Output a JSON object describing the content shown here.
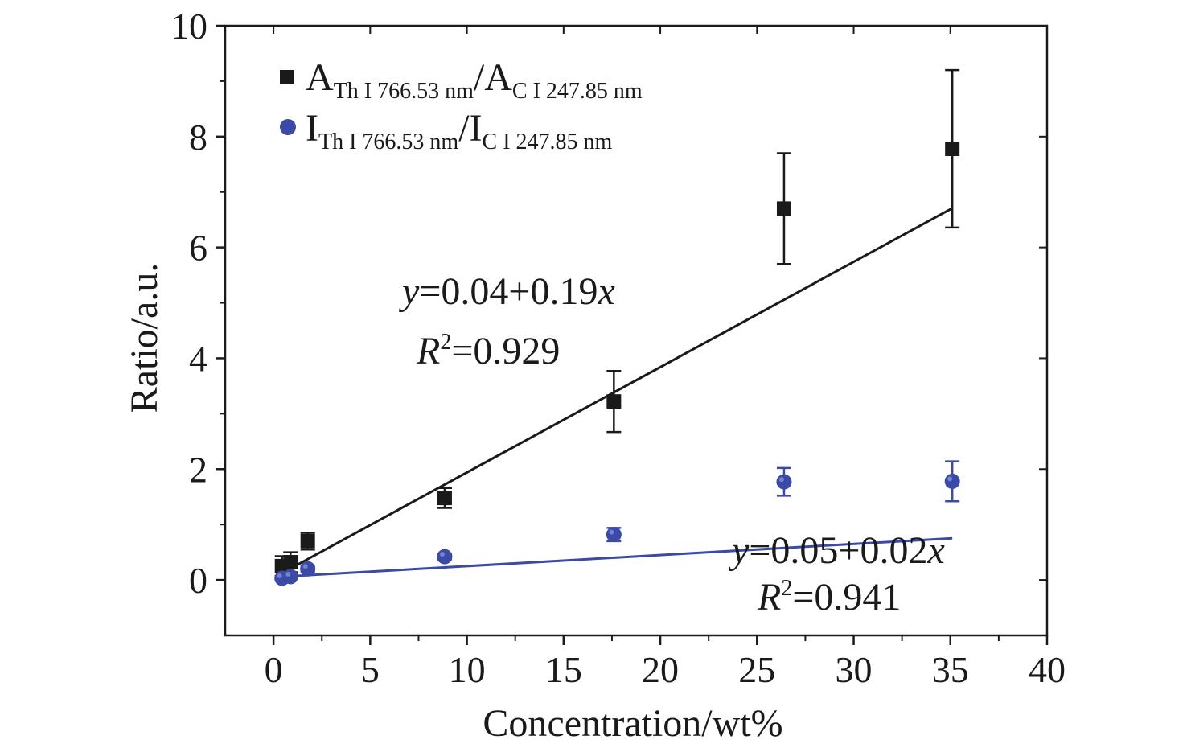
{
  "chart_data": {
    "type": "scatter",
    "xlabel": "Concentration/wt%",
    "ylabel": "Ratio/a.u.",
    "xlim": [
      -2.5,
      40
    ],
    "ylim": [
      -1,
      10
    ],
    "xticks": [
      "0",
      "5",
      "10",
      "15",
      "20",
      "25",
      "30",
      "35",
      "40"
    ],
    "yticks": [
      "0",
      "2",
      "4",
      "6",
      "8",
      "10"
    ],
    "grid": false,
    "legend_position": "top-left",
    "series": [
      {
        "legend": {
          "main1": "A",
          "sub1": "Th I 766.53 nm",
          "main2": "/A",
          "sub2": "C I 247.85 nm"
        },
        "marker": "square",
        "color": "#1a1a1a",
        "x": [
          0.44,
          0.88,
          1.77,
          8.85,
          17.6,
          26.4,
          35.1
        ],
        "y": [
          0.25,
          0.32,
          0.7,
          1.48,
          3.22,
          6.7,
          7.78
        ],
        "yerr": [
          0.18,
          0.18,
          0.15,
          0.18,
          0.55,
          1.0,
          1.42
        ],
        "fit": {
          "intercept": 0.04,
          "slope": 0.19,
          "x_range": [
            0.44,
            35.1
          ]
        },
        "equation": {
          "y": "y",
          "rhs": "=0.04+0.19",
          "x": "x",
          "r": "R",
          "exp": "2",
          "r2": "=0.929"
        }
      },
      {
        "legend": {
          "main1": "I",
          "sub1": "Th I 766.53 nm",
          "main2": "/I",
          "sub2": "C I 247.85 nm"
        },
        "marker": "circle",
        "color": "#3a4aa6",
        "x": [
          0.44,
          0.88,
          1.77,
          8.85,
          17.6,
          26.4,
          35.1
        ],
        "y": [
          0.03,
          0.06,
          0.2,
          0.42,
          0.82,
          1.77,
          1.78
        ],
        "yerr": [
          0.03,
          0.04,
          0.05,
          0.05,
          0.12,
          0.25,
          0.36
        ],
        "fit": {
          "intercept": 0.05,
          "slope": 0.02,
          "x_range": [
            0.44,
            35.1
          ]
        },
        "equation": {
          "y": "y",
          "rhs": "=0.05+0.02",
          "x": "x",
          "r": "R",
          "exp": "2",
          "r2": "=0.941"
        }
      }
    ]
  }
}
